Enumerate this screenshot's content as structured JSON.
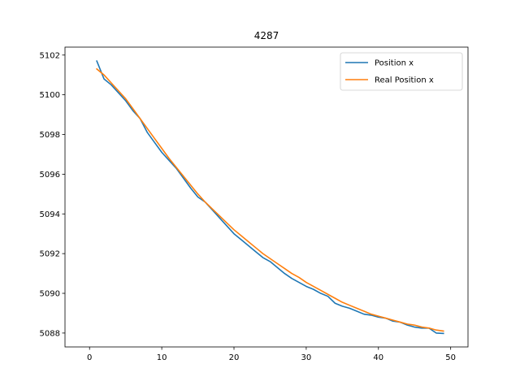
{
  "chart_data": {
    "type": "line",
    "title": "4287",
    "xlabel": "",
    "ylabel": "",
    "xlim": [
      -3.4,
      52.4
    ],
    "ylim": [
      5087.3,
      5102.4
    ],
    "xticks": [
      0,
      10,
      20,
      30,
      40,
      50
    ],
    "yticks": [
      5088,
      5090,
      5092,
      5094,
      5096,
      5098,
      5100,
      5102
    ],
    "grid": false,
    "legend_position": "top-right",
    "series": [
      {
        "name": "Position x",
        "color": "#1f77b4",
        "x": [
          1,
          2,
          3,
          4,
          5,
          6,
          7,
          8,
          9,
          10,
          11,
          12,
          13,
          14,
          15,
          16,
          17,
          18,
          19,
          20,
          21,
          22,
          23,
          24,
          25,
          26,
          27,
          28,
          29,
          30,
          31,
          32,
          33,
          34,
          35,
          36,
          37,
          38,
          39,
          40,
          41,
          42,
          43,
          44,
          45,
          46,
          47,
          48,
          49
        ],
        "y": [
          5101.7,
          5100.8,
          5100.5,
          5100.1,
          5099.7,
          5099.2,
          5098.8,
          5098.1,
          5097.6,
          5097.1,
          5096.7,
          5096.3,
          5095.8,
          5095.3,
          5094.85,
          5094.6,
          5094.2,
          5093.8,
          5093.4,
          5093.0,
          5092.7,
          5092.4,
          5092.1,
          5091.8,
          5091.6,
          5091.3,
          5091.0,
          5090.75,
          5090.55,
          5090.35,
          5090.2,
          5090.0,
          5089.85,
          5089.5,
          5089.35,
          5089.25,
          5089.1,
          5088.95,
          5088.9,
          5088.8,
          5088.75,
          5088.6,
          5088.55,
          5088.4,
          5088.3,
          5088.25,
          5088.25,
          5088.0,
          5087.98
        ]
      },
      {
        "name": "Real Position x",
        "color": "#ff7f0e",
        "x": [
          1,
          2,
          3,
          4,
          5,
          6,
          7,
          8,
          9,
          10,
          11,
          12,
          13,
          14,
          15,
          16,
          17,
          18,
          19,
          20,
          21,
          22,
          23,
          24,
          25,
          26,
          27,
          28,
          29,
          30,
          31,
          32,
          33,
          34,
          35,
          36,
          37,
          38,
          39,
          40,
          41,
          42,
          43,
          44,
          45,
          46,
          47,
          48,
          49
        ],
        "y": [
          5101.3,
          5101.0,
          5100.6,
          5100.2,
          5099.8,
          5099.3,
          5098.8,
          5098.3,
          5097.8,
          5097.3,
          5096.8,
          5096.35,
          5095.9,
          5095.45,
          5095.0,
          5094.6,
          5094.25,
          5093.9,
          5093.55,
          5093.2,
          5092.9,
          5092.6,
          5092.3,
          5092.0,
          5091.75,
          5091.5,
          5091.25,
          5091.0,
          5090.8,
          5090.55,
          5090.35,
          5090.15,
          5089.95,
          5089.75,
          5089.55,
          5089.4,
          5089.25,
          5089.1,
          5088.95,
          5088.85,
          5088.75,
          5088.65,
          5088.55,
          5088.45,
          5088.4,
          5088.3,
          5088.25,
          5088.15,
          5088.1
        ]
      }
    ]
  }
}
